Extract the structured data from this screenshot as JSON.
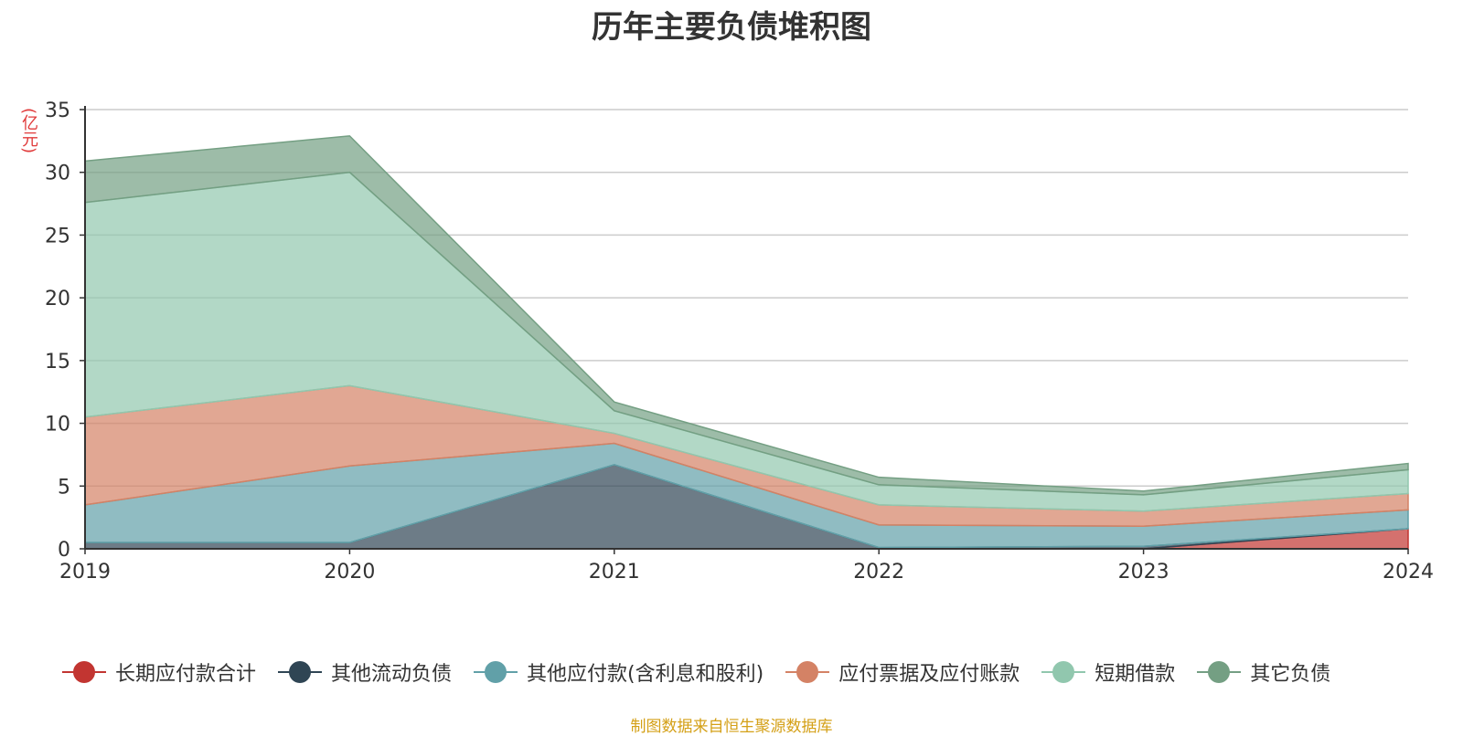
{
  "chart_data": {
    "type": "area",
    "stacked": true,
    "title": "历年主要负债堆积图",
    "ylabel": "(亿元)",
    "xlabel": "",
    "categories": [
      "2019",
      "2020",
      "2021",
      "2022",
      "2023",
      "2024"
    ],
    "ylim": [
      0,
      35
    ],
    "yticks": [
      "0",
      "5",
      "10",
      "15",
      "20",
      "25",
      "30",
      "35"
    ],
    "grid": true,
    "legend_position": "bottom",
    "series": [
      {
        "name": "长期应付款合计",
        "color": "#c23531",
        "values": [
          0,
          0,
          0,
          0,
          0,
          1.6
        ]
      },
      {
        "name": "其他流动负债",
        "color": "#2f4554",
        "values": [
          0.5,
          0.5,
          6.7,
          0.1,
          0.2,
          0
        ]
      },
      {
        "name": "其他应付款(含利息和股利)",
        "color": "#61a0a8",
        "values": [
          3.0,
          6.1,
          1.7,
          1.8,
          1.6,
          1.5
        ]
      },
      {
        "name": "应付票据及应付账款",
        "color": "#d48265",
        "values": [
          7.0,
          6.4,
          0.8,
          1.6,
          1.2,
          1.3
        ]
      },
      {
        "name": "短期借款",
        "color": "#91c7ae",
        "values": [
          17.1,
          17.0,
          1.8,
          1.6,
          1.3,
          1.9
        ]
      },
      {
        "name": "其它负债",
        "color": "#749f83",
        "values": [
          3.3,
          2.9,
          0.7,
          0.6,
          0.3,
          0.5
        ]
      }
    ],
    "source_note": "制图数据来自恒生聚源数据库"
  }
}
